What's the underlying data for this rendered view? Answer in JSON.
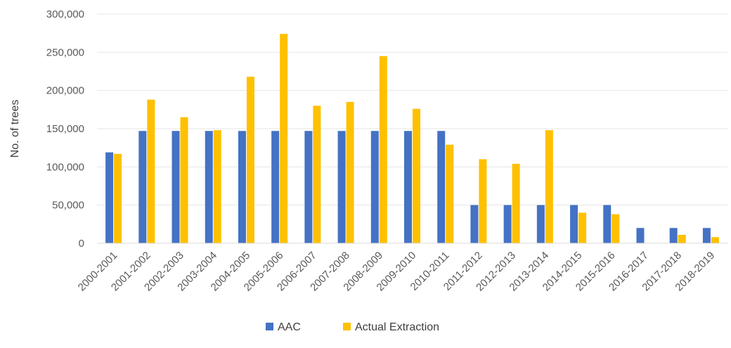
{
  "chart_data": {
    "type": "bar",
    "title": "",
    "xlabel": "",
    "ylabel": "No. of trees",
    "ylim": [
      0,
      300000
    ],
    "yticks": [
      "0",
      "50,000",
      "100,000",
      "150,000",
      "200,000",
      "250,000",
      "300,000"
    ],
    "ytick_values": [
      0,
      50000,
      100000,
      150000,
      200000,
      250000,
      300000
    ],
    "grid": true,
    "legend_position": "bottom",
    "categories": [
      "2000-2001",
      "2001-2002",
      "2002-2003",
      "2003-2004",
      "2004-2005",
      "2005-2006",
      "2006-2007",
      "2007-2008",
      "2008-2009",
      "2009-2010",
      "2010-2011",
      "2011-2012",
      "2012-2013",
      "2013-2014",
      "2014-2015",
      "2015-2016",
      "2016-2017",
      "2017-2018",
      "2018-2019"
    ],
    "series": [
      {
        "name": "AAC",
        "color": "#4472C4",
        "values": [
          119000,
          147000,
          147000,
          147000,
          147000,
          147000,
          147000,
          147000,
          147000,
          147000,
          147000,
          50000,
          50000,
          50000,
          50000,
          50000,
          20000,
          20000,
          20000
        ]
      },
      {
        "name": "Actual Extraction",
        "color": "#FFC000",
        "values": [
          117000,
          188000,
          165000,
          148000,
          218000,
          274000,
          180000,
          185000,
          245000,
          176000,
          129000,
          110000,
          104000,
          148000,
          40000,
          38000,
          0,
          11000,
          8000
        ]
      }
    ]
  }
}
